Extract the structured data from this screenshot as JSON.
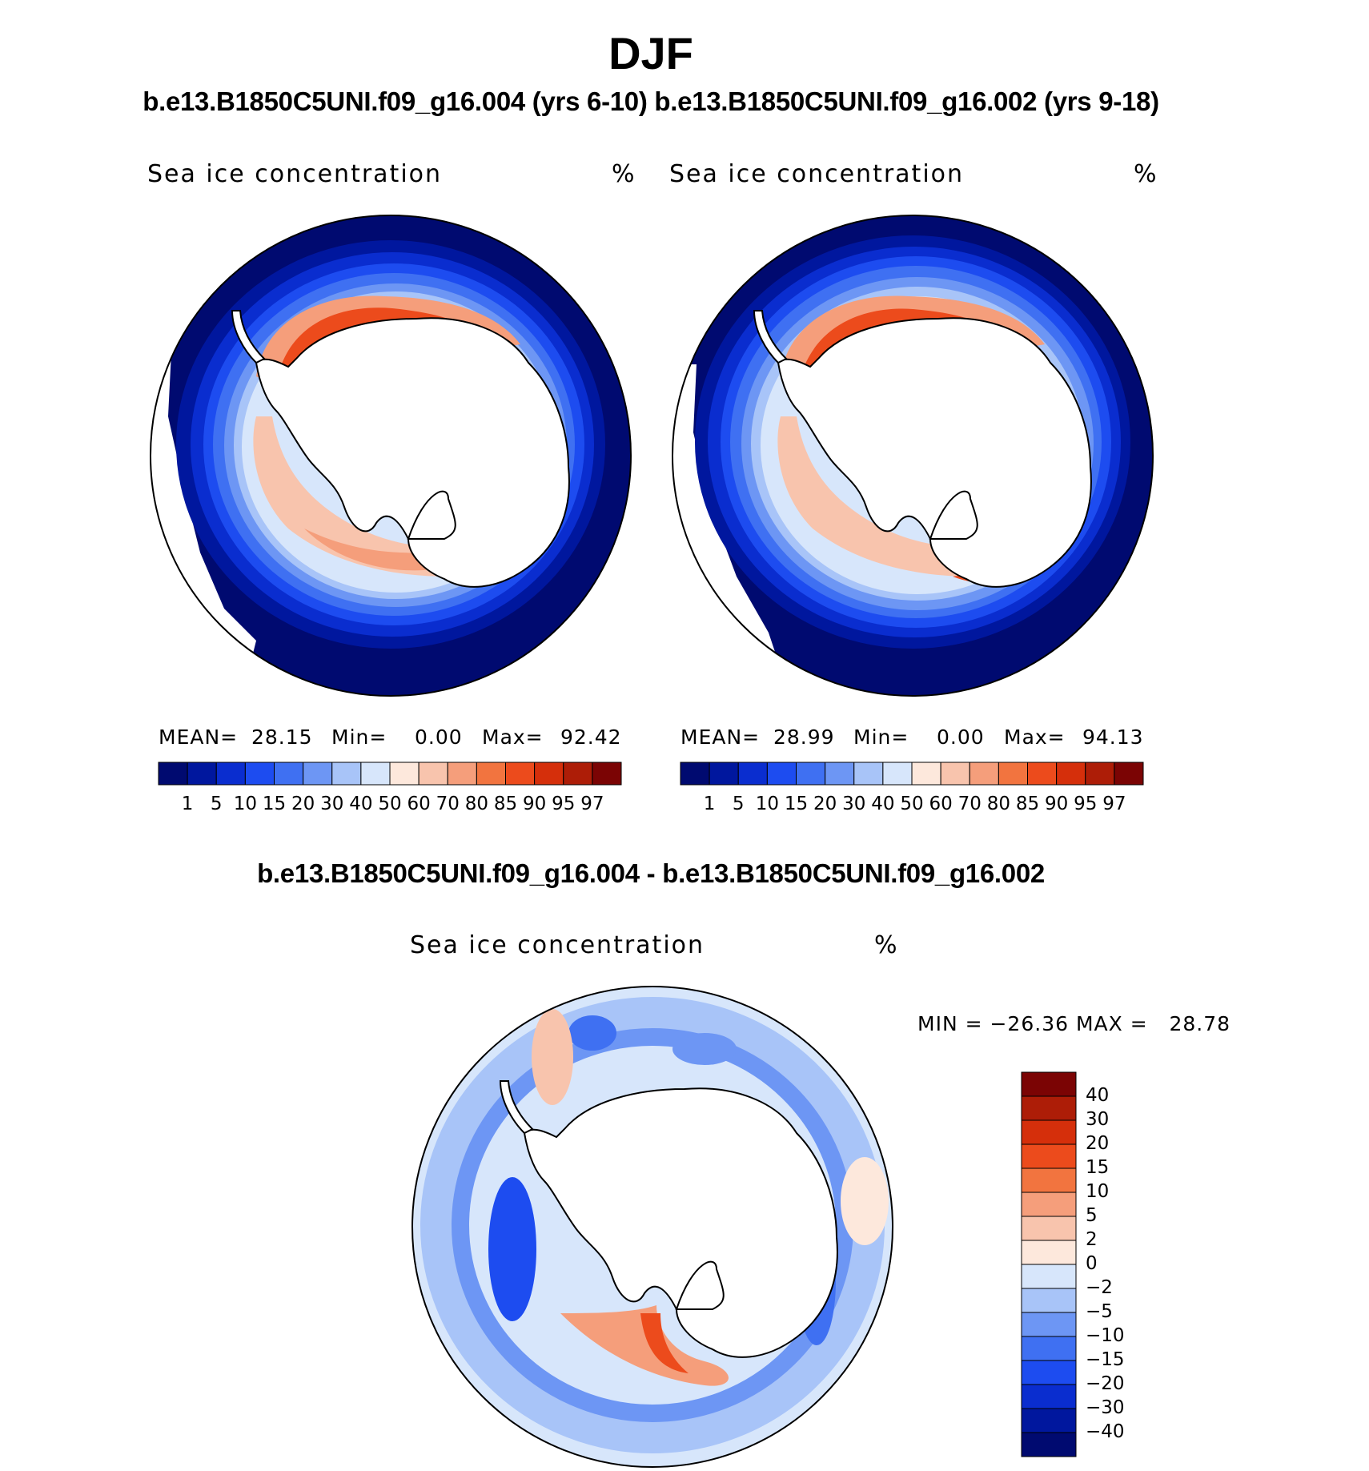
{
  "figure": {
    "season": "DJF",
    "runs_title": "b.e13.B1850C5UNI.f09_g16.004 (yrs 6-10) b.e13.B1850C5UNI.f09_g16.002 (yrs 9-18)",
    "diff_title": "b.e13.B1850C5UNI.f09_g16.004 - b.e13.B1850C5UNI.f09_g16.002"
  },
  "colors": {
    "ice_scale": [
      "#000a70",
      "#00179e",
      "#0a2dcf",
      "#1d4cf0",
      "#3f70f2",
      "#6d96f4",
      "#a8c4f8",
      "#d7e6fb",
      "#fde8dc",
      "#f8c4ad",
      "#f59e7b",
      "#f2743f",
      "#ec4b1c",
      "#d52f0b",
      "#ad1d07",
      "#7b0404"
    ],
    "diff_scale": [
      "#000a70",
      "#00179e",
      "#0a2dcf",
      "#1d4cf0",
      "#3f70f2",
      "#6d96f4",
      "#a8c4f8",
      "#d7e6fb",
      "#fde8dc",
      "#f8c4ad",
      "#f59e7b",
      "#f2743f",
      "#ec4b1c",
      "#d52f0b",
      "#ad1d07",
      "#7b0404"
    ]
  },
  "panels": [
    {
      "title": "Sea ice concentration",
      "unit": "%",
      "mean_label": "MEAN=",
      "mean_value": "28.15",
      "min_label": "Min=",
      "min_value": "0.00",
      "max_label": "Max=",
      "max_value": "92.42",
      "colorbar_ticks": [
        "1",
        "5",
        "10",
        "15",
        "20",
        "30",
        "40",
        "50",
        "60",
        "70",
        "80",
        "85",
        "90",
        "95",
        "97"
      ]
    },
    {
      "title": "Sea ice concentration",
      "unit": "%",
      "mean_label": "MEAN=",
      "mean_value": "28.99",
      "min_label": "Min=",
      "min_value": "0.00",
      "max_label": "Max=",
      "max_value": "94.13",
      "colorbar_ticks": [
        "1",
        "5",
        "10",
        "15",
        "20",
        "30",
        "40",
        "50",
        "60",
        "70",
        "80",
        "85",
        "90",
        "95",
        "97"
      ]
    }
  ],
  "diff_panel": {
    "title": "Sea ice concentration",
    "unit": "%",
    "minmax_text": "MIN = −26.36 MAX =   28.78",
    "colorbar_ticks": [
      "40",
      "30",
      "20",
      "15",
      "10",
      "5",
      "2",
      "0",
      "−2",
      "−5",
      "−10",
      "−15",
      "−20",
      "−30",
      "−40"
    ]
  }
}
